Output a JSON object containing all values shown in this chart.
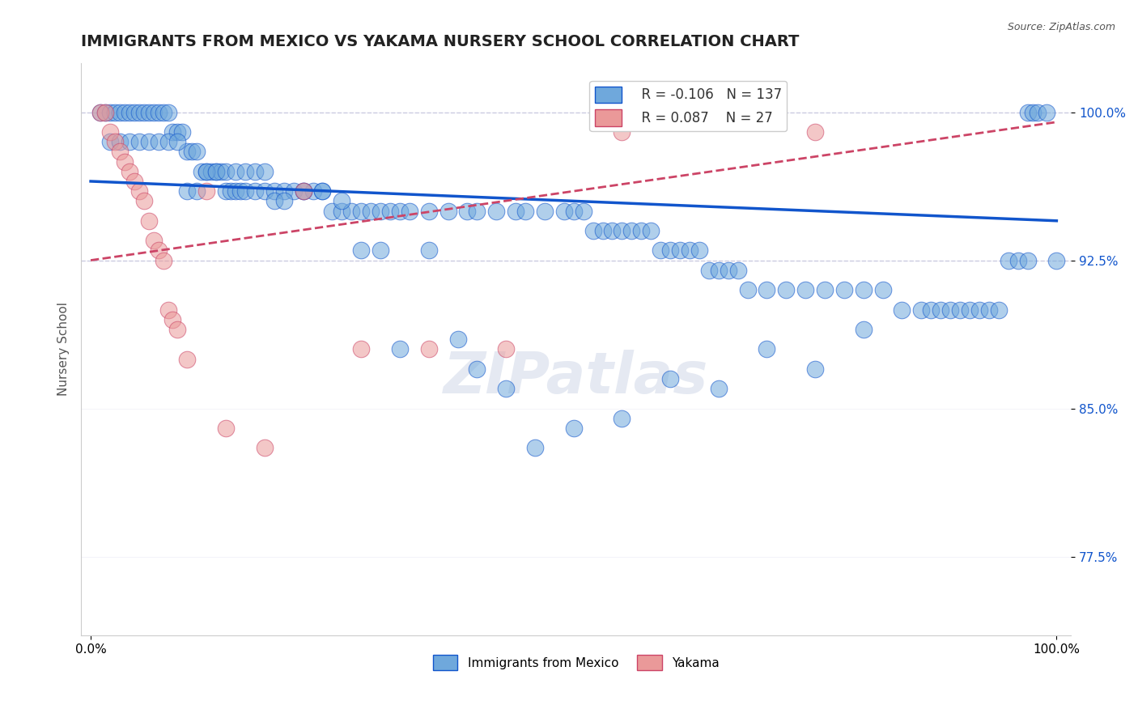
{
  "title": "IMMIGRANTS FROM MEXICO VS YAKAMA NURSERY SCHOOL CORRELATION CHART",
  "source": "Source: ZipAtlas.com",
  "xlabel": "",
  "ylabel": "Nursery School",
  "xlim": [
    0.0,
    1.0
  ],
  "ylim": [
    0.735,
    1.025
  ],
  "yticks": [
    0.775,
    0.85,
    0.925,
    1.0
  ],
  "ytick_labels": [
    "77.5%",
    "85.0%",
    "92.5%",
    "100.0%"
  ],
  "xtick_labels": [
    "0.0%",
    "100.0%"
  ],
  "xticks": [
    0.0,
    1.0
  ],
  "blue_R": -0.106,
  "blue_N": 137,
  "pink_R": 0.087,
  "pink_N": 27,
  "blue_color": "#6fa8dc",
  "pink_color": "#ea9999",
  "blue_line_color": "#1155cc",
  "pink_line_color": "#cc4466",
  "watermark": "ZIPatlas",
  "legend_label_blue": "Immigrants from Mexico",
  "legend_label_pink": "Yakama",
  "blue_scatter_x": [
    0.01,
    0.015,
    0.02,
    0.025,
    0.03,
    0.035,
    0.04,
    0.045,
    0.05,
    0.055,
    0.06,
    0.065,
    0.07,
    0.075,
    0.08,
    0.085,
    0.09,
    0.095,
    0.1,
    0.105,
    0.11,
    0.115,
    0.12,
    0.125,
    0.13,
    0.135,
    0.14,
    0.145,
    0.15,
    0.155,
    0.16,
    0.17,
    0.18,
    0.19,
    0.2,
    0.21,
    0.22,
    0.23,
    0.24,
    0.25,
    0.26,
    0.27,
    0.28,
    0.29,
    0.3,
    0.31,
    0.32,
    0.33,
    0.35,
    0.37,
    0.39,
    0.4,
    0.42,
    0.44,
    0.45,
    0.47,
    0.49,
    0.5,
    0.51,
    0.52,
    0.53,
    0.54,
    0.55,
    0.56,
    0.57,
    0.58,
    0.59,
    0.6,
    0.61,
    0.62,
    0.63,
    0.64,
    0.65,
    0.66,
    0.67,
    0.68,
    0.7,
    0.72,
    0.74,
    0.76,
    0.78,
    0.8,
    0.82,
    0.84,
    0.86,
    0.87,
    0.88,
    0.89,
    0.9,
    0.91,
    0.92,
    0.93,
    0.94,
    0.95,
    0.96,
    0.97,
    0.975,
    0.98,
    0.99,
    1.0,
    0.02,
    0.03,
    0.04,
    0.05,
    0.06,
    0.07,
    0.08,
    0.09,
    0.1,
    0.11,
    0.12,
    0.13,
    0.14,
    0.15,
    0.16,
    0.17,
    0.18,
    0.19,
    0.2,
    0.22,
    0.24,
    0.26,
    0.28,
    0.3,
    0.32,
    0.35,
    0.38,
    0.4,
    0.43,
    0.46,
    0.5,
    0.55,
    0.6,
    0.65,
    0.7,
    0.75,
    0.8,
    0.97
  ],
  "blue_scatter_y": [
    1.0,
    1.0,
    1.0,
    1.0,
    1.0,
    1.0,
    1.0,
    1.0,
    1.0,
    1.0,
    1.0,
    1.0,
    1.0,
    1.0,
    1.0,
    0.99,
    0.99,
    0.99,
    0.98,
    0.98,
    0.98,
    0.97,
    0.97,
    0.97,
    0.97,
    0.97,
    0.96,
    0.96,
    0.96,
    0.96,
    0.96,
    0.96,
    0.96,
    0.96,
    0.96,
    0.96,
    0.96,
    0.96,
    0.96,
    0.95,
    0.95,
    0.95,
    0.95,
    0.95,
    0.95,
    0.95,
    0.95,
    0.95,
    0.95,
    0.95,
    0.95,
    0.95,
    0.95,
    0.95,
    0.95,
    0.95,
    0.95,
    0.95,
    0.95,
    0.94,
    0.94,
    0.94,
    0.94,
    0.94,
    0.94,
    0.94,
    0.93,
    0.93,
    0.93,
    0.93,
    0.93,
    0.92,
    0.92,
    0.92,
    0.92,
    0.91,
    0.91,
    0.91,
    0.91,
    0.91,
    0.91,
    0.91,
    0.91,
    0.9,
    0.9,
    0.9,
    0.9,
    0.9,
    0.9,
    0.9,
    0.9,
    0.9,
    0.9,
    0.925,
    0.925,
    1.0,
    1.0,
    1.0,
    1.0,
    0.925,
    0.985,
    0.985,
    0.985,
    0.985,
    0.985,
    0.985,
    0.985,
    0.985,
    0.96,
    0.96,
    0.97,
    0.97,
    0.97,
    0.97,
    0.97,
    0.97,
    0.97,
    0.955,
    0.955,
    0.96,
    0.96,
    0.955,
    0.93,
    0.93,
    0.88,
    0.93,
    0.885,
    0.87,
    0.86,
    0.83,
    0.84,
    0.845,
    0.865,
    0.86,
    0.88,
    0.87,
    0.89,
    0.925
  ],
  "pink_scatter_x": [
    0.01,
    0.015,
    0.02,
    0.025,
    0.03,
    0.035,
    0.04,
    0.045,
    0.05,
    0.055,
    0.06,
    0.065,
    0.07,
    0.075,
    0.08,
    0.085,
    0.09,
    0.1,
    0.12,
    0.14,
    0.18,
    0.22,
    0.28,
    0.35,
    0.43,
    0.55,
    0.75
  ],
  "pink_scatter_y": [
    1.0,
    1.0,
    0.99,
    0.985,
    0.98,
    0.975,
    0.97,
    0.965,
    0.96,
    0.955,
    0.945,
    0.935,
    0.93,
    0.925,
    0.9,
    0.895,
    0.89,
    0.875,
    0.96,
    0.84,
    0.83,
    0.96,
    0.88,
    0.88,
    0.88,
    0.99,
    0.99
  ],
  "blue_trend_x": [
    0.0,
    1.0
  ],
  "blue_trend_y_start": 0.965,
  "blue_trend_y_end": 0.945,
  "pink_trend_x": [
    0.0,
    1.0
  ],
  "pink_trend_y_start": 0.925,
  "pink_trend_y_end": 0.995,
  "dashed_line_y": 1.0,
  "dashed_line2_y": 0.925
}
